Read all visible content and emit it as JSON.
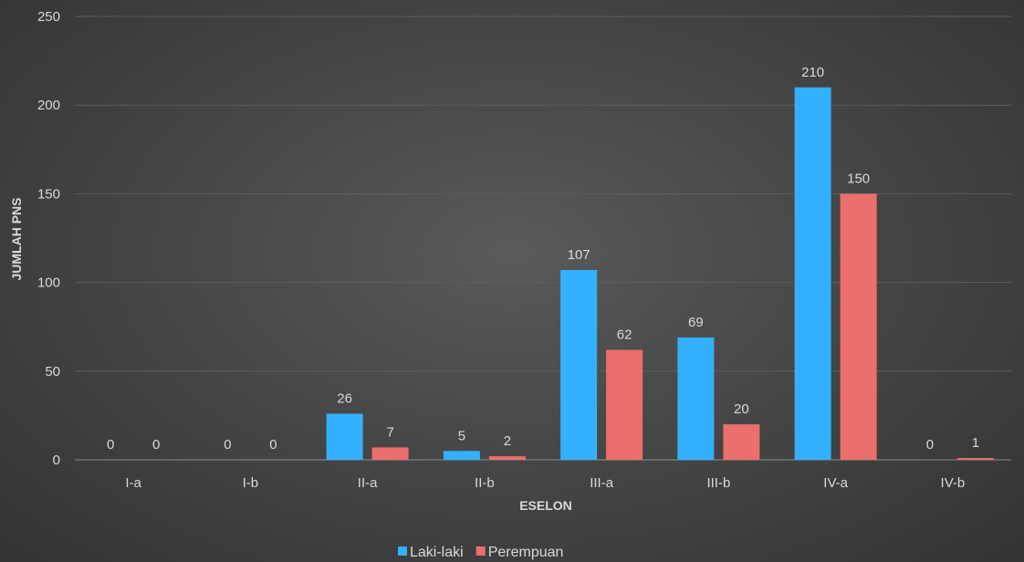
{
  "chart_data": {
    "type": "bar",
    "categories": [
      "I-a",
      "I-b",
      "II-a",
      "II-b",
      "III-a",
      "III-b",
      "IV-a",
      "IV-b"
    ],
    "series": [
      {
        "name": "Laki-laki",
        "values": [
          0,
          0,
          26,
          5,
          107,
          69,
          210,
          0
        ],
        "color": "#33b1fe"
      },
      {
        "name": "Perempuan",
        "values": [
          0,
          0,
          7,
          2,
          62,
          20,
          150,
          1
        ],
        "color": "#ea6f6d"
      }
    ],
    "xlabel": "ESELON",
    "ylabel": "JUMLAH PNS",
    "ylim": [
      0,
      250
    ],
    "yticks": [
      0,
      50,
      100,
      150,
      200,
      250
    ],
    "grid": true,
    "legend_position": "bottom"
  }
}
